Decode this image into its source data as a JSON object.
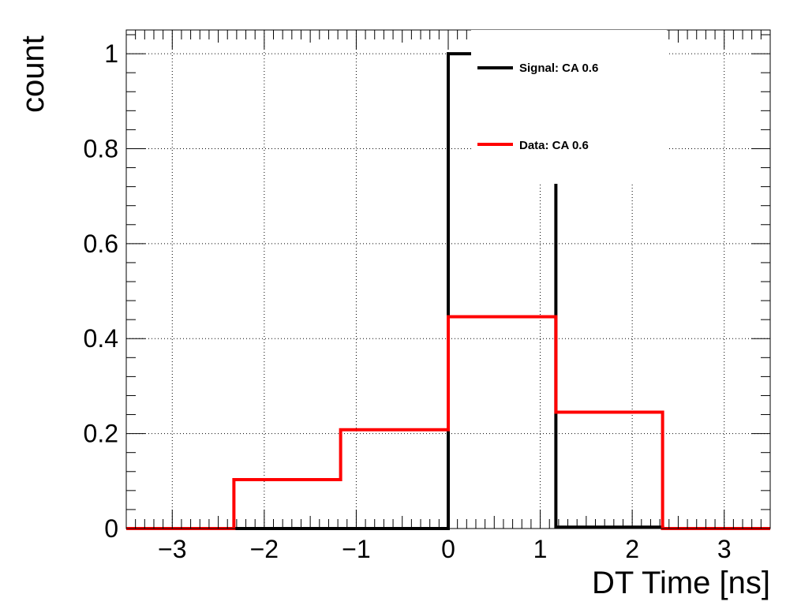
{
  "chart_data": {
    "type": "line",
    "step": true,
    "xlabel": "DT Time [ns]",
    "ylabel": "count",
    "xlim": [
      -3.5,
      3.5
    ],
    "ylim": [
      0,
      1.05
    ],
    "grid": true,
    "legend_position": "top-right",
    "x_ticks": [
      -3,
      -2,
      -1,
      0,
      1,
      2,
      3
    ],
    "x_tick_labels": [
      "−3",
      "−2",
      "−1",
      "0",
      "1",
      "2",
      "3"
    ],
    "y_ticks": [
      0,
      0.2,
      0.4,
      0.6,
      0.8,
      1
    ],
    "y_tick_labels": [
      "0",
      "0.2",
      "0.4",
      "0.6",
      "0.8",
      "1"
    ],
    "bin_edges": [
      -3.5,
      -2.33,
      -1.17,
      0,
      1.17,
      2.33,
      3.5
    ],
    "series": [
      {
        "name": "Signal: CA 0.6",
        "color": "#000000",
        "values": [
          0,
          0,
          0,
          1.0,
          0.003,
          0
        ]
      },
      {
        "name": "Data: CA 0.6",
        "color": "#ff0000",
        "values": [
          0,
          0.103,
          0.208,
          0.446,
          0.245,
          0
        ]
      }
    ]
  }
}
